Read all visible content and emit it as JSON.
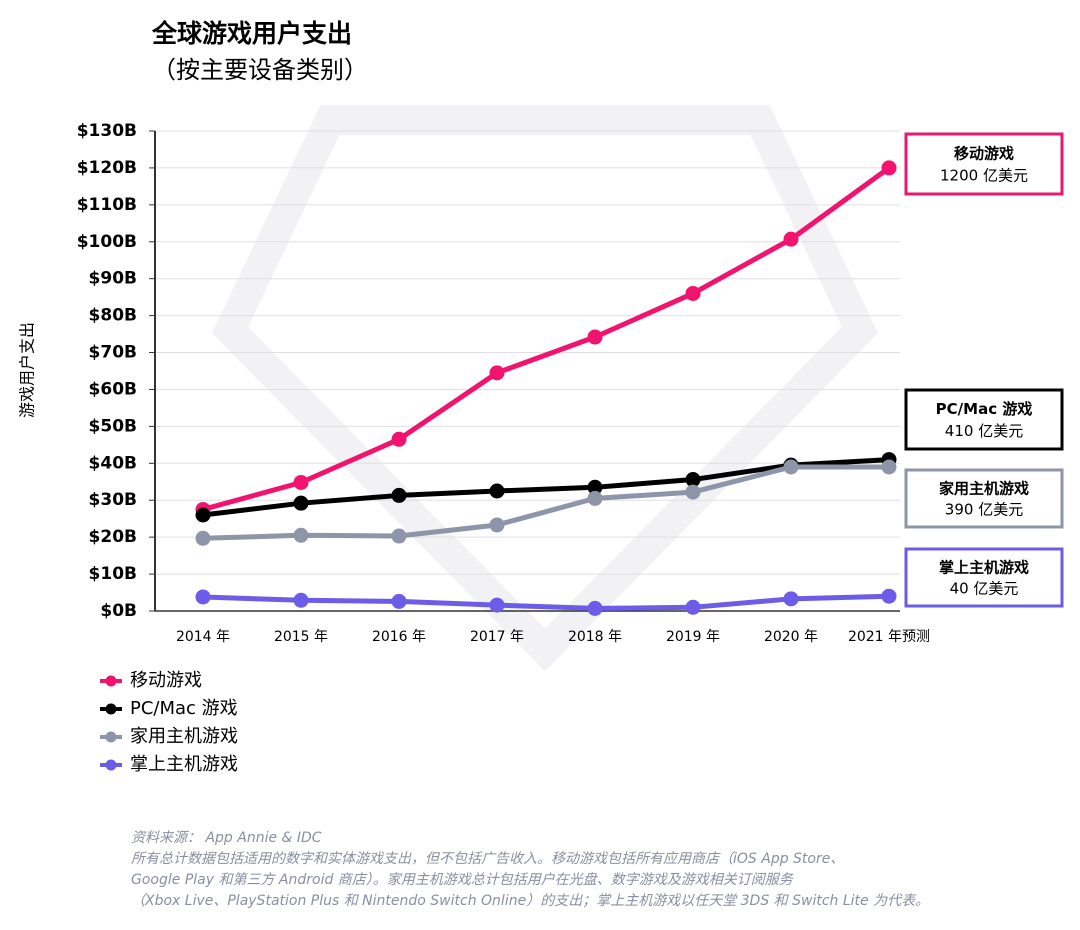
{
  "chart_data": {
    "type": "line",
    "title": "全球游戏用户支出",
    "subtitle": "（按主要设备类别）",
    "y_label": "游戏用户支出",
    "categories": [
      "2014 年",
      "2015 年",
      "2016 年",
      "2017 年",
      "2018 年",
      "2019 年",
      "2020 年",
      "2021 年预测"
    ],
    "series": [
      {
        "name": "移动游戏",
        "color": "#f2136f",
        "values": [
          27.5,
          34.8,
          46.5,
          64.5,
          74.2,
          86,
          100.7,
          120
        ]
      },
      {
        "name": "PC/Mac 游戏",
        "color": "#000000",
        "values": [
          26,
          29.2,
          31.3,
          32.5,
          33.5,
          35.6,
          39.5,
          41
        ]
      },
      {
        "name": "家用主机游戏",
        "color": "#8e95a8",
        "values": [
          19.7,
          20.5,
          20.3,
          23.3,
          30.5,
          32.2,
          39,
          39
        ]
      },
      {
        "name": "掌上主机游戏",
        "color": "#6c5ce7",
        "values": [
          3.8,
          2.9,
          2.6,
          1.6,
          0.7,
          1.0,
          3.3,
          4
        ]
      }
    ],
    "ylim": [
      0,
      130
    ],
    "yticks": [
      {
        "value": 0,
        "label": "$0B"
      },
      {
        "value": 10,
        "label": "$10B"
      },
      {
        "value": 20,
        "label": "$20B"
      },
      {
        "value": 30,
        "label": "$30B"
      },
      {
        "value": 40,
        "label": "$40B"
      },
      {
        "value": 50,
        "label": "$50B"
      },
      {
        "value": 60,
        "label": "$60B"
      },
      {
        "value": 70,
        "label": "$70B"
      },
      {
        "value": 80,
        "label": "$80B"
      },
      {
        "value": 90,
        "label": "$90B"
      },
      {
        "value": 100,
        "label": "$100B"
      },
      {
        "value": 110,
        "label": "$110B"
      },
      {
        "value": 120,
        "label": "$120B"
      },
      {
        "value": 130,
        "label": "$130B"
      }
    ],
    "grid": true,
    "annotations": [
      {
        "title": "移动游戏",
        "text": "1200 亿美元",
        "color": "#e8196e"
      },
      {
        "title": "PC/Mac 游戏",
        "text": "410 亿美元",
        "color": "#000000"
      },
      {
        "title": "家用主机游戏",
        "text": "390 亿美元",
        "color": "#8e95a5"
      },
      {
        "title": "掌上主机游戏",
        "text": "40 亿美元",
        "color": "#6b5be6"
      }
    ],
    "notes": [
      "资料来源： App Annie & IDC",
      "所有总计数据包括适用的数字和实体游戏支出，但不包括广告收入。移动游戏包括所有应用商店（iOS App Store、",
      "Google Play 和第三方 Android 商店）。家用主机游戏总计包括用户在光盘、数字游戏及游戏相关订阅服务",
      "（Xbox Live、PlayStation Plus 和 Nintendo Switch Online）的支出；掌上主机游戏以任天堂 3DS 和 Switch Lite 为代表。"
    ]
  }
}
